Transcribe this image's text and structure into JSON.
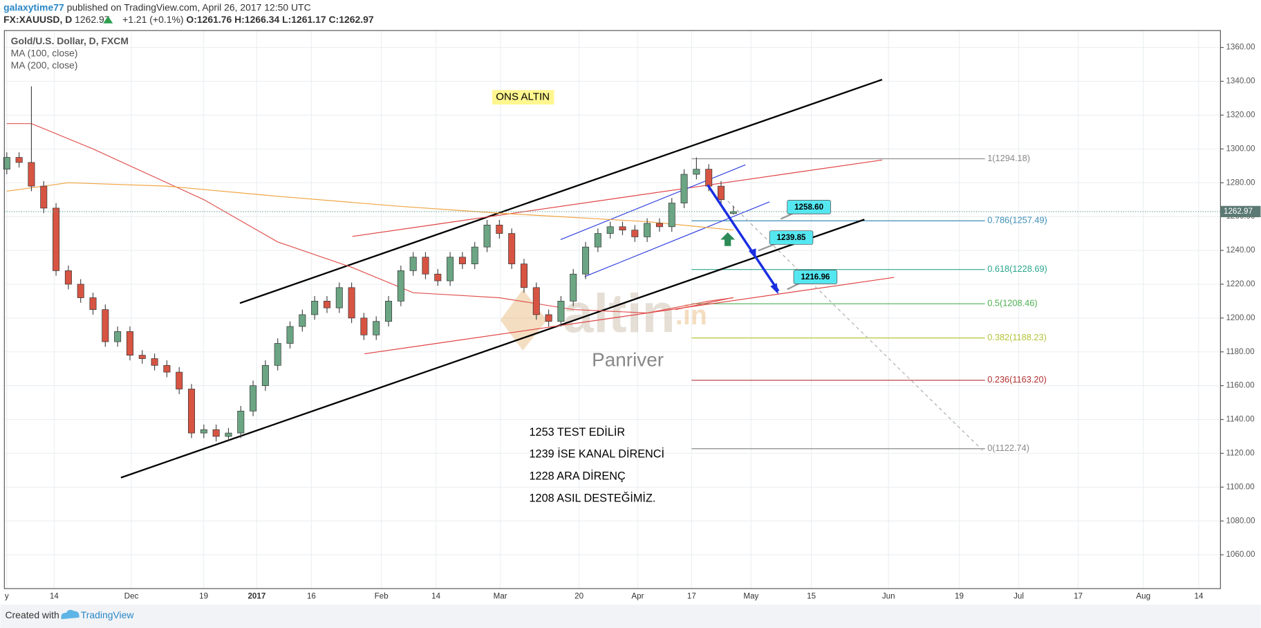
{
  "header": {
    "author": "galaxytime77",
    "published": "published on TradingView.com, April 26, 2017 12:50 UTC",
    "symbol": "FX:XAUUSD, D",
    "last": "1262.97",
    "change": "+1.21 (+0.1%)",
    "open": "O:1261.76",
    "high": "H:1266.34",
    "low": "L:1261.17",
    "close": "C:1262.97"
  },
  "legend": {
    "instrument": "Gold/U.S. Dollar, D, FXCM",
    "ma100": "MA (100, close)",
    "ma200": "MA (200, close)"
  },
  "footer": {
    "created": "Created with",
    "brand": "TradingView"
  },
  "watermark": {
    "logo": "altin",
    "suffix": ".in",
    "sub": "Panriver"
  },
  "chart_data": {
    "type": "candlestick",
    "open": [
      1288,
      1295,
      1292,
      1278,
      1265,
      1228,
      1220,
      1212,
      1205,
      1186,
      1192,
      1178,
      1176,
      1172,
      1168,
      1158,
      1132,
      1134,
      1130,
      1132,
      1145,
      1160,
      1172,
      1185,
      1195,
      1202,
      1210,
      1206,
      1218,
      1200,
      1190,
      1198,
      1210,
      1228,
      1236,
      1226,
      1222,
      1236,
      1232,
      1242,
      1255,
      1250,
      1232,
      1218,
      1202,
      1198,
      1210,
      1226,
      1242,
      1250,
      1254,
      1252,
      1248,
      1256,
      1254,
      1268,
      1285,
      1288,
      1278,
      1261.76
    ],
    "high": [
      1298,
      1298,
      1337,
      1281,
      1268,
      1231,
      1223,
      1215,
      1208,
      1195,
      1195,
      1181,
      1179,
      1175,
      1171,
      1161,
      1137,
      1137,
      1135,
      1148,
      1163,
      1175,
      1188,
      1198,
      1205,
      1213,
      1213,
      1221,
      1221,
      1203,
      1201,
      1213,
      1231,
      1239,
      1239,
      1229,
      1239,
      1239,
      1245,
      1258,
      1258,
      1253,
      1235,
      1221,
      1205,
      1213,
      1229,
      1245,
      1253,
      1257,
      1257,
      1255,
      1259,
      1259,
      1271,
      1288,
      1295,
      1291,
      1281,
      1266.34
    ],
    "low": [
      1285,
      1289,
      1275,
      1262,
      1225,
      1217,
      1209,
      1202,
      1183,
      1183,
      1175,
      1173,
      1169,
      1165,
      1155,
      1129,
      1129,
      1127,
      1127,
      1129,
      1142,
      1157,
      1169,
      1182,
      1192,
      1199,
      1203,
      1203,
      1197,
      1187,
      1187,
      1195,
      1207,
      1225,
      1223,
      1219,
      1219,
      1229,
      1229,
      1239,
      1247,
      1229,
      1215,
      1199,
      1195,
      1195,
      1207,
      1223,
      1239,
      1247,
      1249,
      1245,
      1245,
      1251,
      1251,
      1265,
      1282,
      1275,
      1267,
      1261.17
    ],
    "close": [
      1295,
      1292,
      1278,
      1265,
      1228,
      1220,
      1212,
      1205,
      1186,
      1192,
      1178,
      1176,
      1172,
      1168,
      1158,
      1132,
      1134,
      1130,
      1132,
      1145,
      1160,
      1172,
      1185,
      1195,
      1202,
      1210,
      1206,
      1218,
      1200,
      1190,
      1198,
      1210,
      1228,
      1236,
      1226,
      1222,
      1236,
      1232,
      1242,
      1255,
      1250,
      1232,
      1218,
      1202,
      1198,
      1210,
      1226,
      1242,
      1250,
      1254,
      1252,
      1248,
      1256,
      1254,
      1268,
      1285,
      1288,
      1278,
      1270,
      1262.97
    ],
    "up_color": "#6ba583",
    "down_color": "#d75442",
    "series": [
      {
        "name": "MA (100, close)",
        "color": "#e0534f",
        "x": [
          0,
          2,
          7,
          16,
          22,
          28,
          33,
          40,
          46,
          52,
          57,
          59
        ],
        "values": [
          1315,
          1315,
          1300,
          1270,
          1245,
          1230,
          1215,
          1212,
          1205,
          1203,
          1210,
          1212
        ]
      },
      {
        "name": "MA (200, close)",
        "color": "#f0a440",
        "x": [
          0,
          5,
          13,
          22,
          32,
          40,
          52,
          59
        ],
        "values": [
          1275,
          1280,
          1278,
          1272,
          1266,
          1262,
          1257,
          1252
        ]
      }
    ],
    "last_price": 1262.97,
    "last_price_label": "1262.97",
    "ylim": [
      1040,
      1370
    ],
    "yticks": [
      {
        "value": 1060,
        "label": "1060.00"
      },
      {
        "value": 1080,
        "label": "1080.00"
      },
      {
        "value": 1100,
        "label": "1100.00"
      },
      {
        "value": 1120,
        "label": "1120.00"
      },
      {
        "value": 1140,
        "label": "1140.00"
      },
      {
        "value": 1160,
        "label": "1160.00"
      },
      {
        "value": 1180,
        "label": "1180.00"
      },
      {
        "value": 1200,
        "label": "1200.00"
      },
      {
        "value": 1220,
        "label": "1220.00"
      },
      {
        "value": 1240,
        "label": "1240.00"
      },
      {
        "value": 1260,
        "label": "1260.00"
      },
      {
        "value": 1280,
        "label": "1280.00"
      },
      {
        "value": 1300,
        "label": "1300.00"
      },
      {
        "value": 1320,
        "label": "1320.00"
      },
      {
        "value": 1340,
        "label": "1340.00"
      },
      {
        "value": 1360,
        "label": "1360.00"
      }
    ],
    "x_labels": [
      "y",
      "14",
      "Dec",
      "19",
      "2017",
      "16",
      "Feb",
      "14",
      "Mar",
      "20",
      "Apr",
      "17",
      "May",
      "15",
      "Jun",
      "19",
      "Jul",
      "17",
      "Aug",
      "14"
    ],
    "grid": true,
    "fib_levels": [
      {
        "price": 1294.18,
        "label": "1(1294.18)",
        "color": "#888888"
      },
      {
        "price": 1257.49,
        "label": "0.786(1257.49)",
        "color": "#3d8db5"
      },
      {
        "price": 1228.69,
        "label": "0.618(1228.69)",
        "color": "#2aa58b"
      },
      {
        "price": 1208.46,
        "label": "0.5(1208.46)",
        "color": "#4caf50"
      },
      {
        "price": 1188.23,
        "label": "0.382(1188.23)",
        "color": "#b5c43a"
      },
      {
        "price": 1163.2,
        "label": "0.236(1163.20)",
        "color": "#b03030"
      },
      {
        "price": 1122.74,
        "label": "0(1122.74)",
        "color": "#888888"
      }
    ],
    "callouts": {
      "values": [
        1258.6,
        1239.85,
        1216.96
      ],
      "value_labels": [
        "1258.60",
        "1239.85",
        "1216.96"
      ]
    },
    "annotations": {
      "title": "ONS ALTIN",
      "notes": [
        "1253 TEST EDİLİR",
        "1239 İSE KANAL DİRENCİ",
        "1228 ARA DİRENÇ",
        "1208 ASIL DESTEĞİMİZ."
      ]
    }
  }
}
